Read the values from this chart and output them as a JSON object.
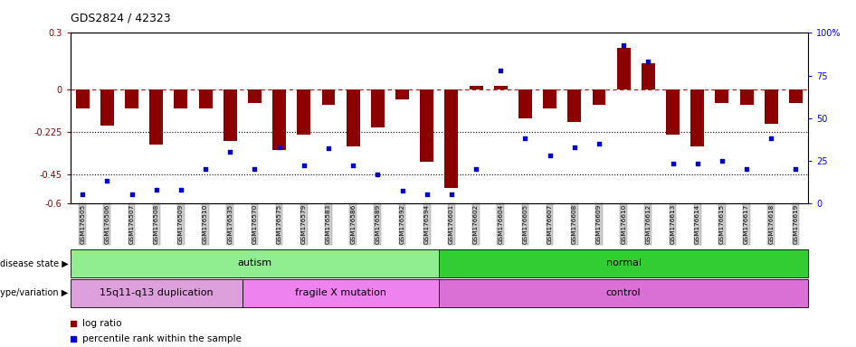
{
  "title": "GDS2824 / 42323",
  "samples": [
    "GSM176505",
    "GSM176506",
    "GSM176507",
    "GSM176508",
    "GSM176509",
    "GSM176510",
    "GSM176535",
    "GSM176570",
    "GSM176575",
    "GSM176579",
    "GSM176583",
    "GSM176586",
    "GSM176589",
    "GSM176592",
    "GSM176594",
    "GSM176601",
    "GSM176602",
    "GSM176604",
    "GSM176605",
    "GSM176607",
    "GSM176608",
    "GSM176609",
    "GSM176610",
    "GSM176612",
    "GSM176613",
    "GSM176614",
    "GSM176615",
    "GSM176617",
    "GSM176618",
    "GSM176619"
  ],
  "log_ratio": [
    -0.1,
    -0.19,
    -0.1,
    -0.29,
    -0.1,
    -0.1,
    -0.27,
    -0.07,
    -0.32,
    -0.24,
    -0.08,
    -0.3,
    -0.2,
    -0.05,
    -0.38,
    -0.52,
    0.02,
    0.02,
    -0.15,
    -0.1,
    -0.17,
    -0.08,
    0.22,
    0.14,
    -0.24,
    -0.3,
    -0.07,
    -0.08,
    -0.18,
    -0.07
  ],
  "percentile": [
    5,
    13,
    5,
    8,
    8,
    20,
    30,
    20,
    33,
    22,
    32,
    22,
    17,
    7,
    5,
    5,
    20,
    78,
    38,
    28,
    33,
    35,
    93,
    83,
    23,
    23,
    25,
    20,
    38,
    20
  ],
  "ylim_left": [
    -0.6,
    0.3
  ],
  "ylim_right": [
    0,
    100
  ],
  "yticks_left": [
    -0.6,
    -0.45,
    -0.225,
    0.0,
    0.3
  ],
  "yticks_right": [
    0,
    25,
    50,
    75,
    100
  ],
  "bar_color": "#8B0000",
  "dot_color": "#0000CD",
  "disease_state_groups": [
    {
      "label": "autism",
      "start": 0,
      "end": 14,
      "color": "#90EE90"
    },
    {
      "label": "normal",
      "start": 15,
      "end": 29,
      "color": "#32CD32"
    }
  ],
  "genotype_groups": [
    {
      "label": "15q11-q13 duplication",
      "start": 0,
      "end": 6,
      "color": "#DDA0DD"
    },
    {
      "label": "fragile X mutation",
      "start": 7,
      "end": 14,
      "color": "#EE82EE"
    },
    {
      "label": "control",
      "start": 15,
      "end": 29,
      "color": "#DA70D6"
    }
  ],
  "disease_state_label": "disease state",
  "genotype_label": "genotype/variation",
  "legend_items": [
    "log ratio",
    "percentile rank within the sample"
  ],
  "bar_width": 0.55
}
